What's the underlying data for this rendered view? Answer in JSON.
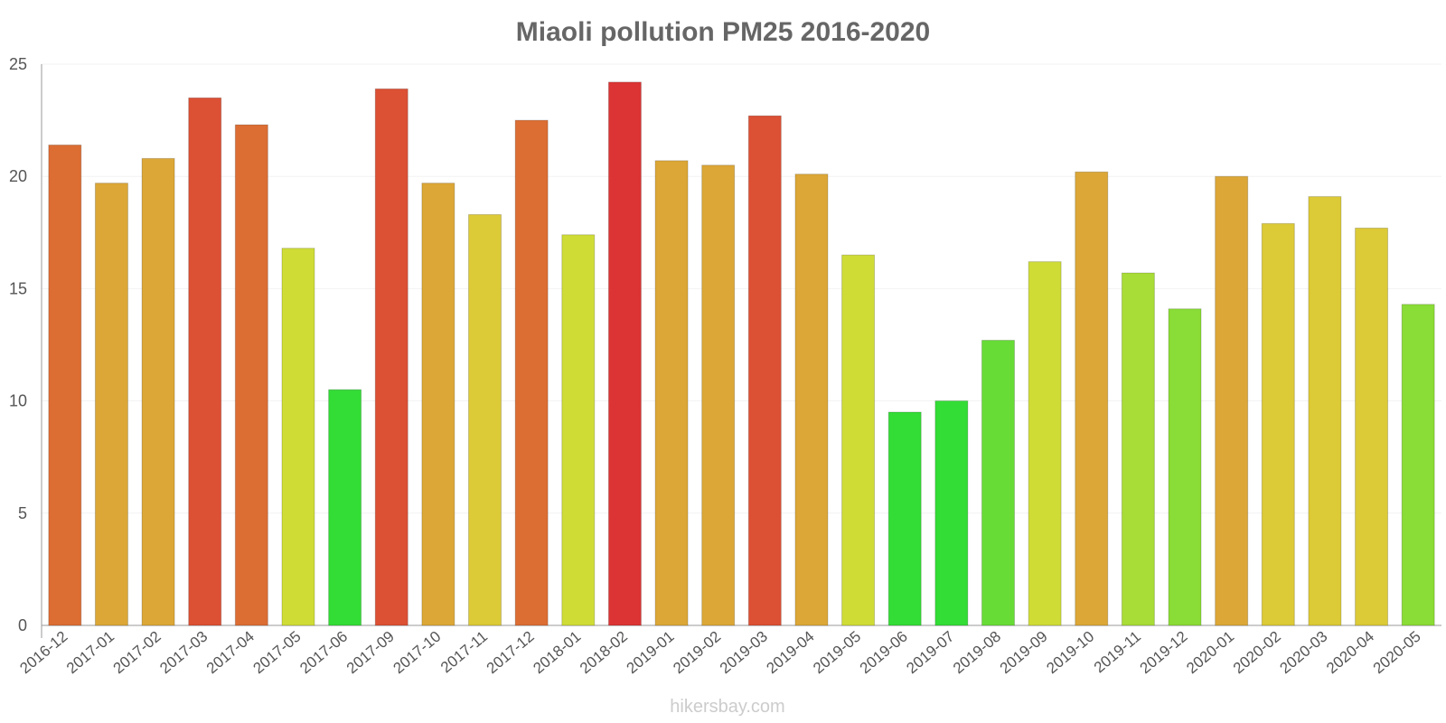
{
  "chart_data": {
    "type": "bar",
    "title": "Miaoli pollution PM25 2016-2020",
    "xlabel": "",
    "ylabel": "",
    "ylim": [
      0,
      25
    ],
    "yticks": [
      0,
      5,
      10,
      15,
      20,
      25
    ],
    "grid": true,
    "categories": [
      "2016-12",
      "2017-01",
      "2017-02",
      "2017-03",
      "2017-04",
      "2017-05",
      "2017-06",
      "2017-09",
      "2017-10",
      "2017-11",
      "2017-12",
      "2018-01",
      "2018-02",
      "2019-01",
      "2019-02",
      "2019-03",
      "2019-04",
      "2019-05",
      "2019-06",
      "2019-07",
      "2019-08",
      "2019-09",
      "2019-10",
      "2019-11",
      "2019-12",
      "2020-01",
      "2020-02",
      "2020-03",
      "2020-04",
      "2020-05"
    ],
    "values": [
      21.4,
      19.7,
      20.8,
      23.5,
      22.3,
      16.8,
      10.5,
      23.9,
      19.7,
      18.3,
      22.5,
      17.4,
      24.2,
      20.7,
      20.5,
      22.7,
      20.1,
      16.5,
      9.5,
      10.0,
      12.7,
      16.2,
      20.2,
      15.7,
      14.1,
      20.0,
      17.9,
      19.1,
      17.7,
      14.3
    ],
    "colors": [
      "#dc6d33",
      "#dca736",
      "#dca736",
      "#dc5034",
      "#dc6d33",
      "#cfdc36",
      "#34dc36",
      "#dc5034",
      "#dca736",
      "#dcca36",
      "#dc6d33",
      "#cfdc36",
      "#dc3434",
      "#dca736",
      "#dca736",
      "#dc5034",
      "#dca736",
      "#cfdc36",
      "#34dc36",
      "#34dc36",
      "#67dc36",
      "#cfdc36",
      "#dca736",
      "#a8dc36",
      "#8adc36",
      "#dca736",
      "#dcca36",
      "#dcca36",
      "#dcca36",
      "#8adc36"
    ]
  },
  "watermark": "hikersbay.com"
}
